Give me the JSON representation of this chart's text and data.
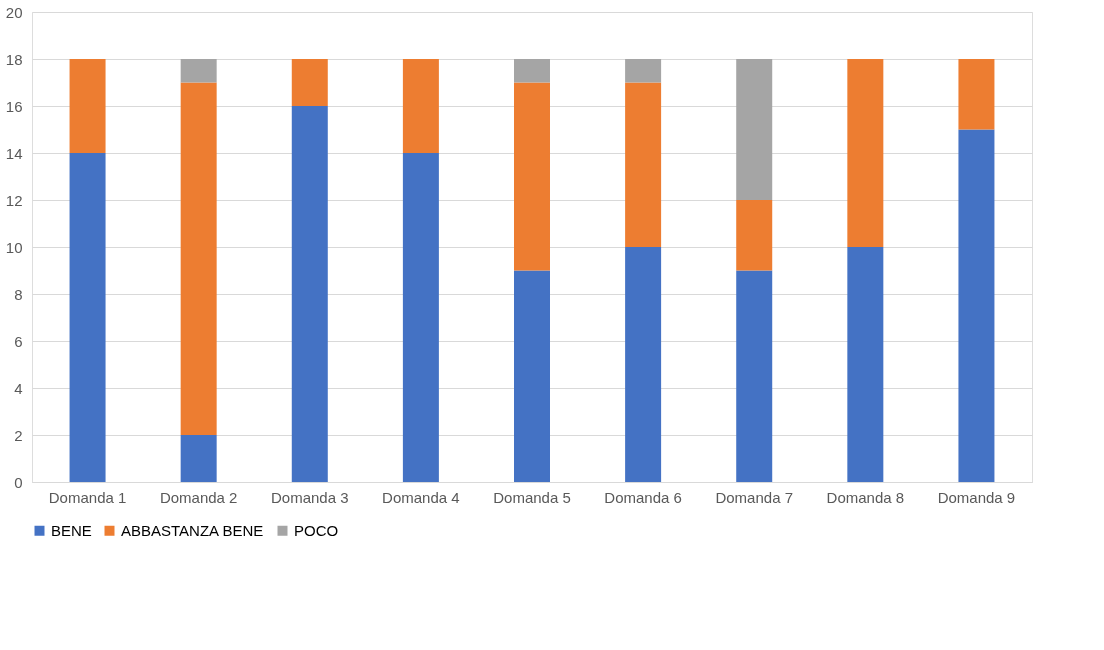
{
  "chart_data": {
    "type": "bar",
    "stacked": true,
    "categories": [
      "Domanda 1",
      "Domanda 2",
      "Domanda 3",
      "Domanda 4",
      "Domanda 5",
      "Domanda 6",
      "Domanda 7",
      "Domanda 8",
      "Domanda 9"
    ],
    "series": [
      {
        "name": "BENE",
        "color": "#4472c4",
        "values": [
          14,
          2,
          16,
          14,
          9,
          10,
          9,
          10,
          15
        ]
      },
      {
        "name": "ABBASTANZA BENE",
        "color": "#ed7d31",
        "values": [
          4,
          15,
          2,
          4,
          8,
          7,
          3,
          8,
          3
        ]
      },
      {
        "name": "POCO",
        "color": "#a5a5a5",
        "values": [
          0,
          1,
          0,
          0,
          1,
          1,
          6,
          0,
          0
        ]
      }
    ],
    "ylim": [
      0,
      20
    ],
    "yticks": [
      0,
      2,
      4,
      6,
      8,
      10,
      12,
      14,
      16,
      18,
      20
    ],
    "grid": "y",
    "legend": "bottom"
  }
}
